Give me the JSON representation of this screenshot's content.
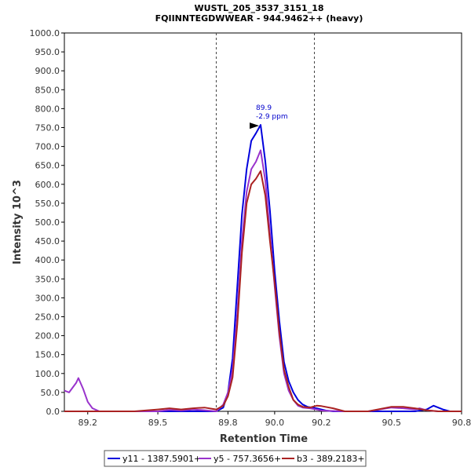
{
  "chart_data": {
    "type": "line",
    "title": "WUSTL_205_3537_3151_18",
    "subtitle": "FQIINNTEGDWWEAR - 944.9462++ (heavy)",
    "xlabel": "Retention Time",
    "ylabel": "Intensity 10^3",
    "xlim": [
      89.1,
      90.8
    ],
    "ylim": [
      0,
      1000
    ],
    "x_ticks": [
      "89.2",
      "89.5",
      "89.8",
      "90.0",
      "90.2",
      "90.5",
      "90.8"
    ],
    "x_tick_values": [
      89.2,
      89.5,
      89.8,
      90.0,
      90.2,
      90.5,
      90.8
    ],
    "y_ticks": [
      "0.0",
      "50.0",
      "100.0",
      "150.0",
      "200.0",
      "250.0",
      "300.0",
      "350.0",
      "400.0",
      "450.0",
      "500.0",
      "550.0",
      "600.0",
      "650.0",
      "700.0",
      "750.0",
      "800.0",
      "850.0",
      "900.0",
      "950.0",
      "1000.0"
    ],
    "y_tick_values": [
      0,
      50,
      100,
      150,
      200,
      250,
      300,
      350,
      400,
      450,
      500,
      550,
      600,
      650,
      700,
      750,
      800,
      850,
      900,
      950,
      1000
    ],
    "vlines": [
      89.75,
      90.17
    ],
    "annotation": {
      "x": 89.94,
      "y": 757,
      "line1": "89.9",
      "line2": "-2.9 ppm"
    },
    "legend_position": "bottom",
    "series": [
      {
        "name": "y11 - 1387.5901+",
        "color": "#0000dd",
        "x": [
          89.1,
          89.6,
          89.75,
          89.78,
          89.8,
          89.82,
          89.84,
          89.86,
          89.88,
          89.9,
          89.92,
          89.94,
          89.96,
          89.98,
          90.0,
          90.02,
          90.04,
          90.06,
          90.08,
          90.1,
          90.12,
          90.14,
          90.16,
          90.18,
          90.2,
          90.22,
          90.25,
          90.3,
          90.4,
          90.55,
          90.6,
          90.65,
          90.68,
          90.7,
          90.72,
          90.75,
          90.8
        ],
        "y": [
          0,
          0,
          0,
          10,
          50,
          140,
          330,
          520,
          640,
          715,
          735,
          757,
          660,
          530,
          370,
          240,
          130,
          80,
          50,
          30,
          18,
          12,
          10,
          8,
          5,
          2,
          0,
          0,
          0,
          0,
          0,
          5,
          15,
          10,
          5,
          0,
          0
        ]
      },
      {
        "name": "y5 - 757.3656+",
        "color": "#9933cc",
        "x": [
          89.1,
          89.12,
          89.15,
          89.16,
          89.18,
          89.2,
          89.22,
          89.25,
          89.4,
          89.5,
          89.55,
          89.6,
          89.65,
          89.7,
          89.75,
          89.78,
          89.8,
          89.82,
          89.84,
          89.86,
          89.88,
          89.9,
          89.92,
          89.94,
          89.96,
          89.98,
          90.0,
          90.02,
          90.04,
          90.06,
          90.08,
          90.1,
          90.12,
          90.15,
          90.18,
          90.2,
          90.3,
          90.4,
          90.5,
          90.55,
          90.6,
          90.62,
          90.65,
          90.7,
          90.75,
          90.8
        ],
        "y": [
          55,
          50,
          75,
          88,
          60,
          25,
          8,
          0,
          0,
          0,
          4,
          2,
          5,
          3,
          0,
          18,
          50,
          110,
          260,
          450,
          580,
          640,
          660,
          690,
          610,
          470,
          330,
          200,
          100,
          55,
          30,
          15,
          10,
          8,
          5,
          2,
          0,
          0,
          10,
          8,
          5,
          8,
          3,
          0,
          0,
          0
        ]
      },
      {
        "name": "b3 - 389.2183+",
        "color": "#aa2222",
        "x": [
          89.1,
          89.4,
          89.5,
          89.55,
          89.6,
          89.65,
          89.7,
          89.75,
          89.78,
          89.8,
          89.82,
          89.84,
          89.86,
          89.88,
          89.9,
          89.92,
          89.94,
          89.96,
          89.98,
          90.0,
          90.02,
          90.04,
          90.06,
          90.08,
          90.1,
          90.12,
          90.15,
          90.18,
          90.2,
          90.25,
          90.3,
          90.4,
          90.5,
          90.55,
          90.6,
          90.65,
          90.7,
          90.8
        ],
        "y": [
          0,
          0,
          5,
          8,
          5,
          8,
          10,
          5,
          15,
          40,
          90,
          230,
          420,
          550,
          600,
          615,
          635,
          570,
          450,
          340,
          210,
          110,
          65,
          30,
          18,
          12,
          10,
          15,
          14,
          8,
          0,
          0,
          12,
          12,
          8,
          3,
          0,
          0
        ]
      }
    ]
  }
}
